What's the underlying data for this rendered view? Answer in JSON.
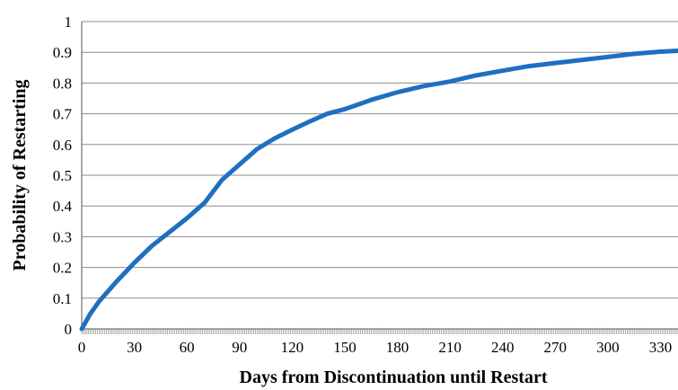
{
  "chart_data": {
    "type": "line",
    "title": "",
    "xlabel": "Days from Discontinuation until Restart",
    "ylabel": "Probability of Restarting",
    "xlim": [
      0,
      340
    ],
    "ylim": [
      0,
      1
    ],
    "x_ticks": [
      0,
      30,
      60,
      90,
      120,
      150,
      180,
      210,
      240,
      270,
      300,
      330
    ],
    "x_tick_labels": [
      "0",
      "30",
      "60",
      "90",
      "120",
      "150",
      "180",
      "210",
      "240",
      "270",
      "300",
      "330"
    ],
    "y_ticks": [
      0,
      0.1,
      0.2,
      0.3,
      0.4,
      0.5,
      0.6,
      0.7,
      0.8,
      0.9,
      1
    ],
    "y_tick_labels": [
      "0",
      "0.1",
      "0.2",
      "0.3",
      "0.4",
      "0.5",
      "0.6",
      "0.7",
      "0.8",
      "0.9",
      "1"
    ],
    "grid": "horizontal",
    "legend": "none",
    "series": [
      {
        "color": "#1f6fc1",
        "x": [
          0,
          5,
          10,
          20,
          30,
          40,
          50,
          60,
          70,
          80,
          90,
          100,
          110,
          120,
          130,
          140,
          150,
          165,
          180,
          195,
          210,
          225,
          240,
          255,
          270,
          285,
          300,
          315,
          330,
          340
        ],
        "y": [
          0,
          0.05,
          0.09,
          0.155,
          0.215,
          0.27,
          0.315,
          0.36,
          0.41,
          0.485,
          0.535,
          0.585,
          0.62,
          0.648,
          0.675,
          0.7,
          0.715,
          0.745,
          0.77,
          0.79,
          0.805,
          0.825,
          0.84,
          0.855,
          0.865,
          0.875,
          0.885,
          0.895,
          0.902,
          0.905
        ]
      }
    ]
  }
}
